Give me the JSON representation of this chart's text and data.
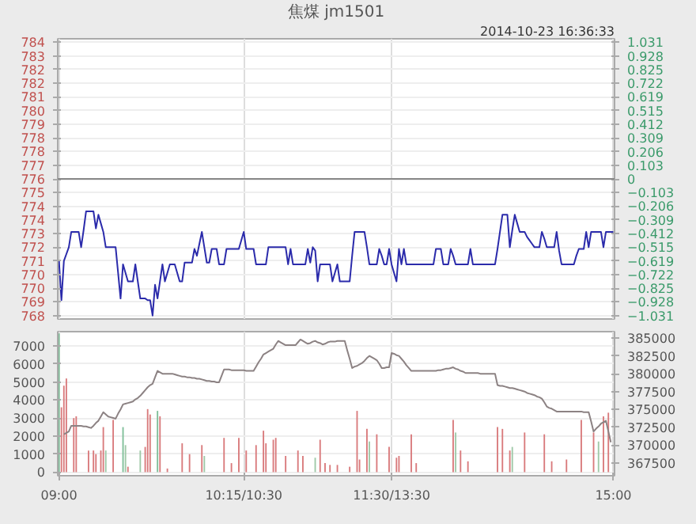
{
  "chart_data": [
    {
      "type": "line",
      "title": "焦煤 jm1501",
      "annotations": [
        "2014-10-23 16:36:33"
      ],
      "categories": [
        null,
        null,
        null,
        null,
        null,
        null,
        null,
        null,
        null,
        null,
        null,
        null,
        null,
        null,
        null,
        null,
        null,
        null,
        null,
        null,
        null,
        null,
        null,
        null,
        null,
        null,
        null,
        null,
        null,
        null,
        null,
        null,
        null,
        null,
        null,
        null,
        null,
        null,
        null,
        null,
        null,
        null,
        null,
        null,
        null,
        null,
        null,
        null,
        null,
        null,
        null,
        null,
        null,
        null,
        null,
        null,
        null,
        null,
        null,
        null,
        null,
        null,
        null,
        null,
        null,
        null,
        null,
        null,
        null,
        null,
        null,
        null,
        null,
        null,
        null,
        null,
        null,
        null,
        null,
        null,
        null,
        null,
        null,
        null,
        null,
        null,
        null,
        null,
        null,
        null,
        null,
        null,
        null,
        null,
        null,
        null,
        null,
        null,
        null,
        null,
        null,
        null,
        null,
        null,
        null,
        null,
        null,
        null,
        null,
        null,
        null,
        null,
        null,
        null,
        null,
        null,
        null,
        null,
        null,
        null,
        null,
        null,
        null,
        null,
        null,
        null,
        null,
        null,
        null,
        null,
        null,
        null,
        null,
        null,
        null,
        null,
        null,
        null,
        null,
        null,
        null,
        null,
        null,
        null,
        null,
        null,
        null,
        null,
        null,
        null,
        null,
        null,
        null,
        null,
        null,
        null,
        null,
        null,
        null,
        null,
        null,
        null,
        null,
        null,
        null,
        null,
        null,
        null,
        null,
        null,
        null,
        null,
        null,
        null,
        null,
        null,
        null,
        null,
        null,
        null,
        null,
        null,
        null,
        null,
        null,
        null,
        null,
        null,
        null,
        null,
        null,
        null,
        null,
        null,
        null,
        null,
        null,
        null,
        null,
        null,
        null,
        null,
        null,
        null,
        null,
        null,
        null,
        null,
        null,
        null,
        null,
        null,
        null,
        null,
        null,
        null,
        null,
        null,
        null,
        null,
        null,
        null,
        null,
        null,
        null,
        null
      ],
      "ylim": [
        767.8,
        784.2
      ],
      "yticks": [
        768,
        {
          "value": 768.8,
          "label": "769"
        },
        {
          "value": 769.6,
          "label": "770"
        },
        {
          "value": 770.4,
          "label": "770"
        },
        {
          "value": 771.2,
          "label": "771"
        },
        772,
        {
          "value": 772.8,
          "label": "773"
        },
        {
          "value": 773.6,
          "label": "774"
        },
        {
          "value": 774.4,
          "label": "774"
        },
        {
          "value": 775.2,
          "label": "775"
        },
        776,
        {
          "value": 776.8,
          "label": "777"
        },
        {
          "value": 777.6,
          "label": "778"
        },
        {
          "value": 778.4,
          "label": "778"
        },
        {
          "value": 779.2,
          "label": "779"
        },
        780,
        {
          "value": 780.8,
          "label": "781"
        },
        {
          "value": 781.6,
          "label": "782"
        },
        {
          "value": 782.4,
          "label": "782"
        },
        {
          "value": 783.2,
          "label": "783"
        },
        784
      ],
      "y2lim": [
        -1.057,
        1.057
      ],
      "y2ticks": [
        -1.031,
        -0.928,
        -0.825,
        -0.722,
        -0.619,
        -0.515,
        -0.412,
        -0.309,
        -0.206,
        -0.103,
        0,
        0.103,
        0.206,
        0.309,
        0.412,
        0.515,
        0.619,
        0.722,
        0.825,
        0.928,
        1.031
      ],
      "tick_labels": "y",
      "grid": true,
      "ref_lines": [
        {
          "axis": "y",
          "value": 776,
          "color": "#888888"
        }
      ],
      "series": [
        {
          "color": "#2b2bab",
          "values": [
            771.2,
            768.9,
            771.2,
            771.6,
            772.0,
            772.9,
            772.9,
            772.9,
            772.9,
            772.0,
            773.0,
            774.1,
            774.1,
            774.1,
            774.1,
            773.1,
            773.9,
            773.4,
            772.9,
            772.0,
            772.0,
            772.0,
            772.0,
            772.0,
            770.5,
            769.0,
            771.0,
            770.5,
            770.0,
            770.0,
            770.0,
            771.0,
            770.0,
            769.0,
            769.0,
            769.0,
            768.9,
            768.9,
            768.0,
            769.8,
            769.0,
            770.0,
            771.0,
            770.0,
            770.5,
            771.0,
            771.0,
            771.0,
            770.5,
            770.0,
            770.0,
            771.1,
            771.1,
            771.1,
            771.1,
            771.9,
            771.5,
            772.2,
            772.9,
            772.0,
            771.1,
            771.1,
            771.9,
            771.9,
            771.9,
            771.0,
            771.0,
            771.0,
            771.9,
            771.9,
            771.9,
            771.9,
            771.9,
            771.9,
            772.4,
            772.9,
            771.9,
            771.9,
            771.9,
            771.9,
            771.0,
            771.0,
            771.0,
            771.0,
            771.0,
            772.0,
            772.0,
            772.0,
            772.0,
            772.0,
            772.0,
            772.0,
            772.0,
            771.0,
            771.9,
            771.0,
            771.0,
            771.0,
            771.0,
            771.0,
            771.0,
            771.9,
            771.1,
            772.0,
            771.8,
            770.0,
            771.0,
            771.0,
            771.0,
            771.0,
            771.0,
            770.0,
            770.5,
            771.0,
            770.0,
            770.0,
            770.0,
            770.0,
            770.0,
            771.5,
            772.9,
            772.9,
            772.9,
            772.9,
            772.9,
            772.0,
            771.0,
            771.0,
            771.0,
            771.0,
            771.9,
            771.5,
            771.0,
            771.0,
            771.9,
            771.0,
            770.5,
            770.0,
            771.9,
            771.0,
            771.9,
            771.0,
            771.0,
            771.0,
            771.0,
            771.0,
            771.0,
            771.0,
            771.0,
            771.0,
            771.0,
            771.0,
            771.0,
            771.9,
            771.9,
            771.9,
            771.0,
            771.0,
            771.0,
            771.9,
            771.5,
            771.0,
            771.0,
            771.0,
            771.0,
            771.0,
            771.0,
            771.9,
            771.0,
            771.0,
            771.0,
            771.0,
            771.0,
            771.0,
            771.0,
            771.0,
            771.0,
            771.0,
            771.9,
            772.9,
            773.9,
            773.9,
            773.9,
            772.0,
            773.0,
            773.9,
            773.4,
            772.9,
            772.9,
            772.9,
            772.6,
            772.4,
            772.2,
            772.0,
            772.0,
            772.0,
            772.9,
            772.5,
            772.0,
            772.0,
            772.0,
            772.0,
            772.9,
            771.8,
            771.0,
            771.0,
            771.0,
            771.0,
            771.0,
            771.0,
            771.5,
            771.9,
            771.9,
            771.9,
            772.9,
            772.0,
            772.9,
            772.9,
            772.9,
            772.9,
            772.9,
            772.0,
            772.9,
            772.9,
            772.9,
            772.9
          ]
        }
      ]
    },
    {
      "type": "bar",
      "categories": [
        "09:00",
        null,
        null,
        null,
        null,
        null,
        null,
        null,
        null,
        null,
        null,
        null,
        null,
        null,
        null,
        null,
        null,
        null,
        null,
        null,
        null,
        null,
        null,
        null,
        null,
        null,
        null,
        null,
        null,
        null,
        null,
        null,
        null,
        null,
        null,
        null,
        null,
        null,
        null,
        null,
        null,
        null,
        null,
        null,
        null,
        null,
        null,
        null,
        null,
        null,
        null,
        null,
        null,
        null,
        null,
        null,
        null,
        null,
        null,
        null,
        null,
        null,
        null,
        null,
        null,
        null,
        null,
        null,
        null,
        null,
        null,
        null,
        null,
        null,
        null,
        "10:15/10:30",
        null,
        null,
        null,
        null,
        null,
        null,
        null,
        null,
        null,
        null,
        null,
        null,
        null,
        null,
        null,
        null,
        null,
        null,
        null,
        null,
        null,
        null,
        null,
        null,
        null,
        null,
        null,
        null,
        null,
        null,
        null,
        null,
        null,
        null,
        null,
        null,
        null,
        null,
        null,
        null,
        null,
        null,
        null,
        null,
        null,
        null,
        null,
        null,
        null,
        null,
        null,
        null,
        null,
        null,
        null,
        null,
        null,
        null,
        null,
        "11:30/13:30",
        null,
        null,
        null,
        null,
        null,
        null,
        null,
        null,
        null,
        null,
        null,
        null,
        null,
        null,
        null,
        null,
        null,
        null,
        null,
        null,
        null,
        null,
        null,
        null,
        null,
        null,
        null,
        null,
        null,
        null,
        null,
        null,
        null,
        null,
        null,
        null,
        null,
        null,
        null,
        null,
        null,
        null,
        null,
        null,
        null,
        null,
        null,
        null,
        null,
        null,
        null,
        null,
        null,
        null,
        null,
        null,
        null,
        null,
        null,
        null,
        null,
        null,
        null,
        null,
        null,
        null,
        null,
        null,
        null,
        null,
        null,
        null,
        null,
        null,
        null,
        null,
        null,
        null,
        null,
        null,
        null,
        null,
        null,
        null,
        null,
        null,
        null,
        null,
        null,
        "15:00"
      ],
      "ylim": [
        -200,
        7800
      ],
      "yticks": [
        0,
        1000,
        2000,
        3000,
        4000,
        5000,
        6000,
        7000
      ],
      "y2lim": [
        365700,
        385900
      ],
      "y2ticks": [
        367500,
        370000,
        372500,
        375000,
        377500,
        380000,
        382500,
        385000
      ],
      "grid": true,
      "series": [
        {
          "type": "bar",
          "values": [
            7700,
            3600,
            4800,
            5200,
            null,
            null,
            3000,
            3100,
            null,
            null,
            null,
            null,
            1200,
            null,
            1200,
            1000,
            null,
            1200,
            2500,
            1200,
            null,
            null,
            2900,
            null,
            null,
            null,
            2500,
            1500,
            300,
            null,
            null,
            null,
            null,
            1200,
            null,
            1400,
            3500,
            3200,
            null,
            null,
            3400,
            3100,
            null,
            null,
            200,
            null,
            null,
            null,
            null,
            null,
            1600,
            null,
            null,
            1000,
            null,
            null,
            null,
            null,
            1500,
            900,
            null,
            null,
            null,
            null,
            null,
            null,
            null,
            1900,
            null,
            null,
            500,
            null,
            null,
            1900,
            null,
            null,
            1200,
            null,
            null,
            null,
            1500,
            null,
            null,
            2300,
            1600,
            null,
            null,
            1800,
            1900,
            null,
            null,
            null,
            900,
            null,
            null,
            null,
            null,
            1200,
            null,
            900,
            null,
            null,
            null,
            null,
            800,
            null,
            1800,
            null,
            500,
            null,
            400,
            null,
            null,
            400,
            null,
            null,
            null,
            null,
            300,
            null,
            null,
            3400,
            700,
            null,
            null,
            2400,
            1700,
            null,
            null,
            2100,
            null,
            null,
            null,
            null,
            1400,
            null,
            null,
            800,
            900,
            null,
            null,
            null,
            null,
            2100,
            null,
            500,
            null,
            null,
            null,
            null,
            null,
            null,
            null,
            null,
            null,
            null,
            null,
            null,
            null,
            null,
            2900,
            2200,
            null,
            1200,
            null,
            null,
            600,
            null,
            null,
            null,
            null,
            null,
            null,
            null,
            null,
            null,
            null,
            null,
            2500,
            null,
            2400,
            null,
            null,
            1200,
            1400,
            null,
            null,
            null,
            null,
            2200,
            null,
            null,
            null,
            null,
            null,
            null,
            null,
            2100,
            null,
            null,
            600,
            null,
            null,
            null,
            null,
            null,
            700,
            null,
            null,
            null,
            null,
            null,
            2900,
            null,
            null,
            null,
            null,
            2200,
            null,
            1700,
            null,
            3100,
            null,
            3300,
            null,
            null
          ],
          "colors": [
            "#7fbf99",
            "#d97a7c",
            "#d97a7c",
            "#d97a7c",
            null,
            null,
            "#d97a7c",
            "#d97a7c",
            null,
            null,
            null,
            null,
            "#d97a7c",
            null,
            "#d97a7c",
            "#d97a7c",
            null,
            "#d97a7c",
            "#d97a7c",
            "#9fc9a8",
            null,
            null,
            "#d97a7c",
            null,
            null,
            null,
            "#7fbf99",
            "#9fc9a8",
            "#d97a7c",
            null,
            null,
            null,
            null,
            "#9fc9a8",
            null,
            "#d97a7c",
            "#d97a7c",
            "#d97a7c",
            null,
            null,
            "#7fbf99",
            "#d97a7c",
            null,
            null,
            "#d97a7c",
            null,
            null,
            null,
            null,
            null,
            "#d97a7c",
            null,
            null,
            "#d97a7c",
            null,
            null,
            null,
            null,
            "#d97a7c",
            "#9fc9a8",
            null,
            null,
            null,
            null,
            null,
            null,
            null,
            "#d97a7c",
            null,
            null,
            "#d97a7c",
            null,
            null,
            "#d97a7c",
            null,
            null,
            "#d97a7c",
            null,
            null,
            null,
            "#d97a7c",
            null,
            null,
            "#d97a7c",
            "#d97a7c",
            null,
            null,
            "#d97a7c",
            "#d97a7c",
            null,
            null,
            null,
            "#d97a7c",
            null,
            null,
            null,
            null,
            "#d97a7c",
            null,
            "#d97a7c",
            null,
            null,
            null,
            null,
            "#9fc9a8",
            null,
            "#d97a7c",
            null,
            "#d97a7c",
            null,
            "#d97a7c",
            null,
            null,
            "#d97a7c",
            null,
            null,
            null,
            null,
            "#d97a7c",
            null,
            null,
            "#d97a7c",
            "#d97a7c",
            null,
            null,
            "#d97a7c",
            "#9fc9a8",
            null,
            null,
            "#d97a7c",
            null,
            null,
            null,
            null,
            "#d97a7c",
            null,
            null,
            "#d97a7c",
            "#d97a7c",
            null,
            null,
            null,
            null,
            "#d97a7c",
            null,
            "#d97a7c",
            null,
            null,
            null,
            null,
            null,
            null,
            null,
            null,
            null,
            null,
            null,
            null,
            null,
            null,
            "#d97a7c",
            "#9fc9a8",
            null,
            "#d97a7c",
            null,
            null,
            "#d97a7c",
            null,
            null,
            null,
            null,
            null,
            null,
            null,
            null,
            null,
            null,
            null,
            "#d97a7c",
            null,
            "#d97a7c",
            null,
            null,
            "#d97a7c",
            "#9fc9a8",
            null,
            null,
            null,
            null,
            "#d97a7c",
            null,
            null,
            null,
            null,
            null,
            null,
            null,
            "#d97a7c",
            null,
            null,
            "#d97a7c",
            null,
            null,
            null,
            null,
            null,
            "#d97a7c",
            null,
            null,
            null,
            null,
            null,
            "#d97a7c",
            null,
            null,
            null,
            null,
            "#d97a7c",
            null,
            "#9fc9a8",
            null,
            "#d97a7c",
            null,
            "#d97a7c",
            null,
            null
          ]
        },
        {
          "type": "line",
          "axis": "y2",
          "color": "#8c8283",
          "values": [
            null,
            null,
            371500,
            371700,
            371900,
            372700,
            372700,
            372700,
            372700,
            372700,
            372600,
            372600,
            372500,
            372400,
            372700,
            373100,
            373400,
            374000,
            374600,
            374300,
            374000,
            373900,
            373800,
            373700,
            374400,
            375000,
            375700,
            375800,
            375900,
            376000,
            376100,
            376400,
            376600,
            376900,
            377300,
            377700,
            378100,
            378400,
            378600,
            379500,
            380400,
            380200,
            380000,
            380000,
            380000,
            380000,
            380000,
            379900,
            379800,
            379700,
            379600,
            379600,
            379500,
            379500,
            379400,
            379400,
            379300,
            379300,
            379200,
            379100,
            379000,
            379000,
            378900,
            378900,
            378800,
            378800,
            379700,
            380600,
            380600,
            380600,
            380500,
            380500,
            380500,
            380500,
            380500,
            380500,
            380400,
            380400,
            380400,
            380400,
            381000,
            381600,
            382100,
            382700,
            382900,
            383100,
            383300,
            383500,
            384100,
            384600,
            384400,
            384200,
            384000,
            384000,
            384000,
            384000,
            384000,
            384400,
            384800,
            384600,
            384400,
            384200,
            384300,
            384500,
            384600,
            384400,
            384300,
            384100,
            384200,
            384400,
            384500,
            384500,
            384500,
            384600,
            384600,
            384600,
            384600,
            383300,
            382100,
            380800,
            381000,
            381100,
            381300,
            381500,
            381800,
            382200,
            382500,
            382300,
            382100,
            381900,
            381400,
            380800,
            380800,
            380900,
            380900,
            382900,
            382800,
            382600,
            382500,
            382100,
            381700,
            381200,
            380800,
            380400,
            380400,
            380400,
            380400,
            380400,
            380400,
            380400,
            380400,
            380400,
            380400,
            380400,
            380500,
            380500,
            380600,
            380700,
            380700,
            380800,
            380900,
            380700,
            380600,
            380400,
            380300,
            380100,
            380100,
            380100,
            380100,
            380100,
            380100,
            380000,
            380000,
            380000,
            380000,
            380000,
            380000,
            380000,
            378400,
            378300,
            378300,
            378200,
            378100,
            378000,
            378000,
            377900,
            377800,
            377700,
            377600,
            377500,
            377300,
            377200,
            377100,
            377000,
            376800,
            376700,
            376500,
            376000,
            375400,
            375200,
            375100,
            374900,
            374700,
            374700,
            374700,
            374700,
            374700,
            374700,
            374700,
            374700,
            374700,
            374700,
            374700,
            374600,
            374600,
            374600,
            373300,
            371900,
            372300,
            372600,
            373000,
            373200,
            373400,
            371900,
            370400,
            null
          ]
        }
      ]
    }
  ]
}
